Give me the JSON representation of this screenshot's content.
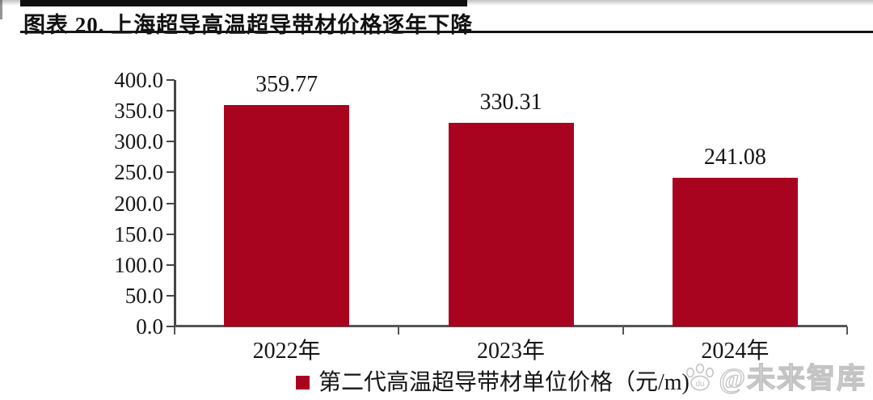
{
  "figure": {
    "title": "图表 20. 上海超导高温超导带材价格逐年下降"
  },
  "chart_data": {
    "type": "bar",
    "title": "图表 20. 上海超导高温超导带材价格逐年下降",
    "categories": [
      "2022年",
      "2023年",
      "2024年"
    ],
    "values": [
      359.77,
      330.31,
      241.08
    ],
    "value_labels": [
      "359.77",
      "330.31",
      "241.08"
    ],
    "xlabel": "",
    "ylabel": "",
    "ylim": [
      0,
      400
    ],
    "ytick_interval": 50,
    "ytick_labels": [
      "400.0",
      "350.0",
      "300.0",
      "250.0",
      "200.0",
      "150.0",
      "100.0",
      "50.0",
      "0.0"
    ],
    "grid": false,
    "legend_position": "bottom",
    "legend": [
      {
        "label": "第二代高温超导带材单位价格（元/m)",
        "color": "#a8041f"
      }
    ],
    "bar_color": "#a8041f",
    "axis_color": "#4c4c4c"
  },
  "watermark": {
    "paw_icon_label": "du",
    "text": "@未来智库"
  }
}
